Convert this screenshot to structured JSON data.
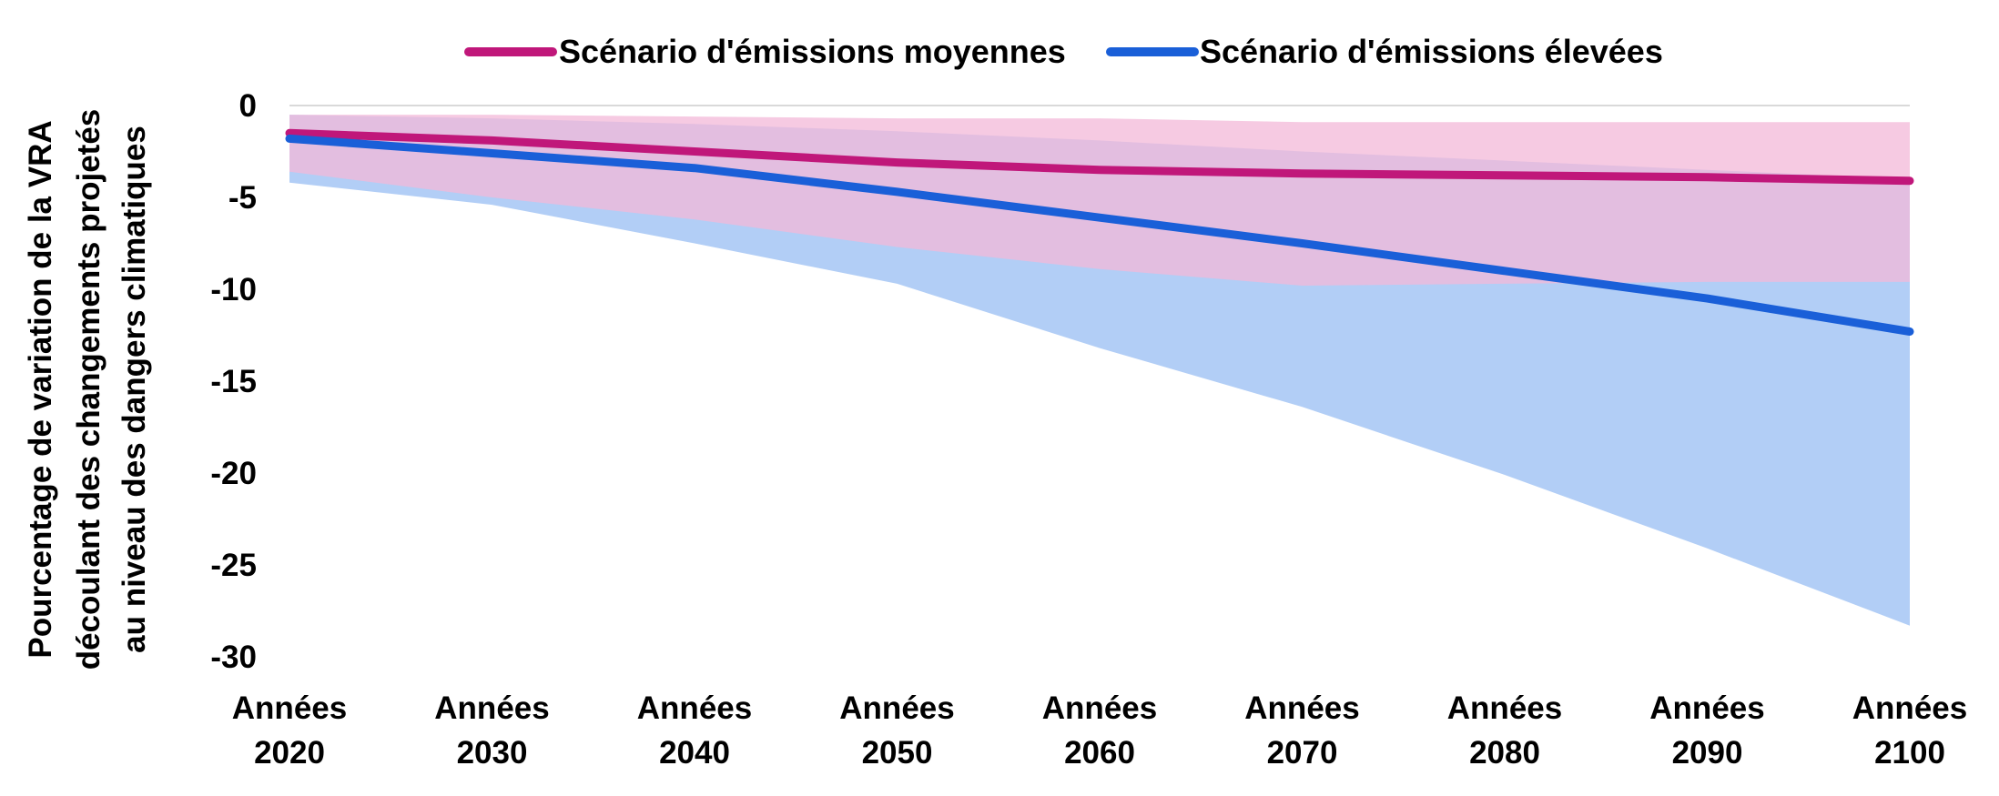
{
  "chart_data": {
    "type": "area",
    "x_categories": [
      [
        "Années",
        "2020"
      ],
      [
        "Années",
        "2030"
      ],
      [
        "Années",
        "2040"
      ],
      [
        "Années",
        "2050"
      ],
      [
        "Années",
        "2060"
      ],
      [
        "Années",
        "2070"
      ],
      [
        "Années",
        "2080"
      ],
      [
        "Années",
        "2090"
      ],
      [
        "Années",
        "2100"
      ]
    ],
    "ylabel_lines": [
      "Pourcentage de variation de la VRA",
      "découlant des changements projetés",
      "au niveau des dangers climatiques"
    ],
    "ylim": [
      -30,
      0
    ],
    "yticks": [
      0,
      -5,
      -10,
      -15,
      -20,
      -25,
      -30
    ],
    "grid": false,
    "legend_position": "top",
    "series": [
      {
        "name": "Scénario d'émissions moyennes",
        "color": "#c0177a",
        "band_color": "#f3b8d8",
        "values": [
          -1.5,
          -1.9,
          -2.5,
          -3.1,
          -3.5,
          -3.7,
          -3.8,
          -3.9,
          -4.1
        ],
        "upper": [
          -0.5,
          -0.5,
          -0.6,
          -0.7,
          -0.7,
          -0.9,
          -0.9,
          -0.9,
          -0.9
        ],
        "lower": [
          -3.6,
          -5.0,
          -6.2,
          -7.7,
          -8.9,
          -9.8,
          -9.7,
          -9.6,
          -9.6
        ]
      },
      {
        "name": "Scénario d'émissions élevées",
        "color": "#1a5fd8",
        "band_color": "#aecbf5",
        "values": [
          -1.8,
          -2.6,
          -3.4,
          -4.7,
          -6.1,
          -7.5,
          -9.0,
          -10.5,
          -12.3
        ],
        "upper": [
          -0.5,
          -0.7,
          -1.0,
          -1.4,
          -1.9,
          -2.5,
          -3.0,
          -3.5,
          -4.0
        ],
        "lower": [
          -4.2,
          -5.4,
          -7.5,
          -9.7,
          -13.2,
          -16.4,
          -20.1,
          -24.1,
          -28.3
        ]
      }
    ]
  }
}
